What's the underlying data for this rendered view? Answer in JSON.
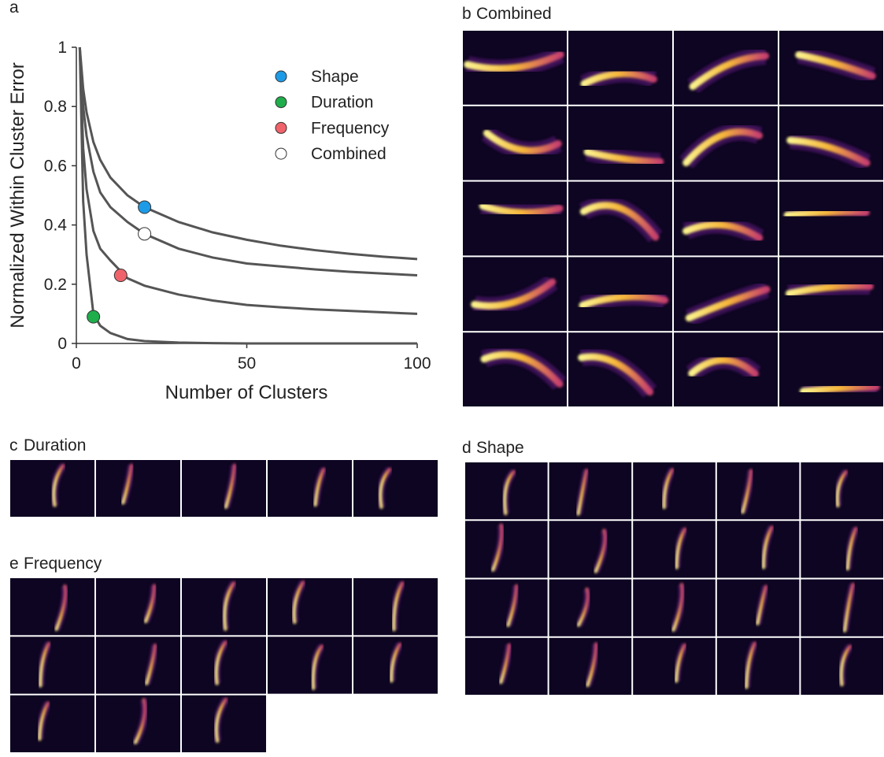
{
  "chart_data": {
    "type": "line",
    "panel_label": "a",
    "x_label": "Number of Clusters",
    "y_label": "Normalized Within Cluster Error",
    "x": [
      1,
      2,
      3,
      5,
      7,
      10,
      15,
      20,
      30,
      40,
      50,
      60,
      70,
      80,
      90,
      100
    ],
    "line_color": "#555555",
    "series": [
      {
        "name": "Shape",
        "color": "#1e9be6",
        "marker_x": 20,
        "marker_y": 0.46,
        "values": [
          1,
          0.86,
          0.78,
          0.68,
          0.62,
          0.56,
          0.5,
          0.46,
          0.41,
          0.375,
          0.35,
          0.33,
          0.315,
          0.303,
          0.293,
          0.285
        ]
      },
      {
        "name": "Duration",
        "color": "#1fae4b",
        "marker_x": 5,
        "marker_y": 0.09,
        "values": [
          1,
          0.48,
          0.3,
          0.1,
          0.06,
          0.035,
          0.015,
          0.008,
          0.003,
          0.001,
          0,
          0,
          0,
          0,
          0,
          0
        ]
      },
      {
        "name": "Frequency",
        "color": "#f0636b",
        "marker_x": 13,
        "marker_y": 0.23,
        "values": [
          1,
          0.66,
          0.52,
          0.38,
          0.32,
          0.28,
          0.22,
          0.195,
          0.165,
          0.145,
          0.13,
          0.122,
          0.115,
          0.11,
          0.105,
          0.1
        ]
      },
      {
        "name": "Combined",
        "color": "#ffffff",
        "marker_x": 20,
        "marker_y": 0.37,
        "values": [
          1,
          0.8,
          0.7,
          0.58,
          0.51,
          0.46,
          0.41,
          0.37,
          0.32,
          0.29,
          0.27,
          0.26,
          0.25,
          0.242,
          0.236,
          0.23
        ]
      }
    ],
    "xlim": [
      0,
      100
    ],
    "ylim": [
      0,
      1
    ],
    "xticks": [
      0,
      50,
      100
    ],
    "yticks": [
      0,
      0.2,
      0.4,
      0.6,
      0.8,
      1
    ]
  },
  "panels": [
    {
      "label": "b",
      "title": "Combined"
    },
    {
      "label": "c",
      "title": "Duration"
    },
    {
      "label": "d",
      "title": "Shape"
    },
    {
      "label": "e",
      "title": "Frequency"
    }
  ]
}
